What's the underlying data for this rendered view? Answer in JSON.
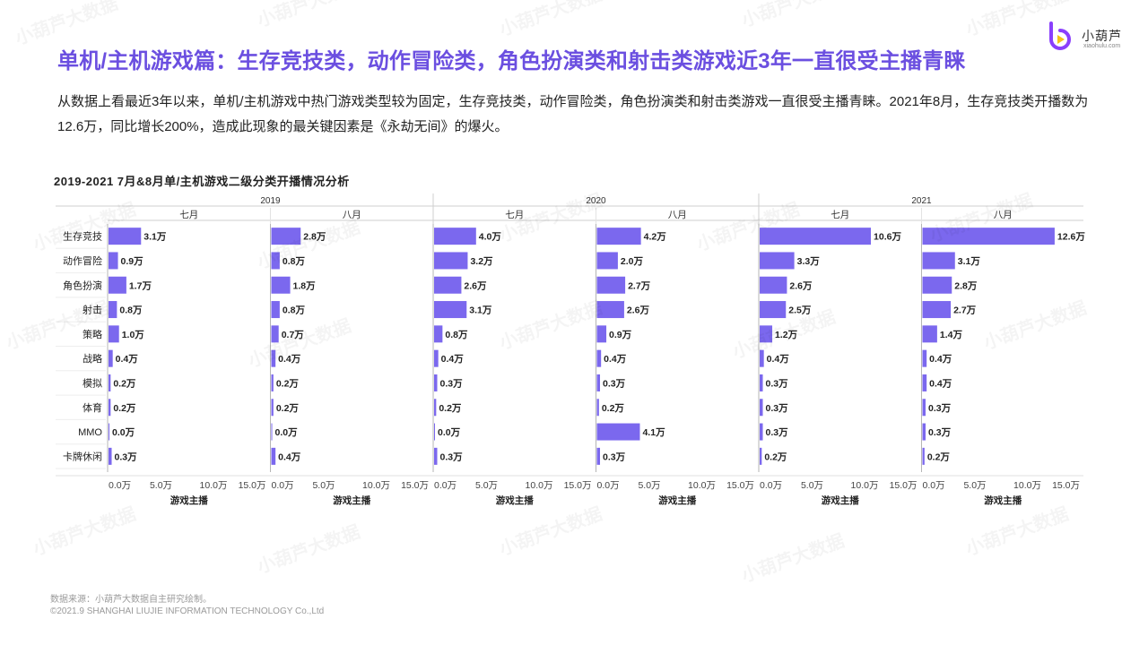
{
  "page": {
    "title": "单机/主机游戏篇：生存竞技类，动作冒险类，角色扮演类和射击类游戏近3年一直很受主播青睐",
    "description": "从数据上看最近3年以来，单机/主机游戏中热门游戏类型较为固定，生存竞技类，动作冒险类，角色扮演类和射击类游戏一直很受主播青睐。2021年8月，生存竞技类开播数为12.6万，同比增长200%，造成此现象的最关键因素是《永劫无间》的爆火。",
    "footer_source": "数据来源：小葫芦大数据自主研究绘制。",
    "footer_copyright": "©2021.9 SHANGHAI LIUJIE INFORMATION  TECHNOLOGY Co.,Ltd",
    "watermark": "小葫芦大数据"
  },
  "logo": {
    "name": "小葫芦",
    "url": "xiaohulu.com",
    "icon": "xiaohulu-logo-icon",
    "colors": {
      "purple": "#8a3ffc",
      "yellow": "#f5c518"
    }
  },
  "colors": {
    "bar": "#7b68ee",
    "title": "#6b4fe0"
  },
  "chart_data": {
    "type": "bar",
    "orientation": "horizontal",
    "title": "2019-2021  7月&8月单/主机游戏二级分类开播情况分析",
    "categories": [
      "生存竞技",
      "动作冒险",
      "角色扮演",
      "射击",
      "策略",
      "战略",
      "模拟",
      "体育",
      "MMO",
      "卡牌休闲"
    ],
    "years": [
      "2019",
      "2020",
      "2021"
    ],
    "xlabel": "游戏主播",
    "xlim": [
      0,
      15
    ],
    "xticks": [
      "0.0万",
      "5.0万",
      "10.0万",
      "15.0万"
    ],
    "value_unit": "万",
    "panels": [
      {
        "year": "2019",
        "month": "七月",
        "values": [
          3.1,
          0.9,
          1.7,
          0.8,
          1.0,
          0.4,
          0.2,
          0.2,
          0.0,
          0.3
        ]
      },
      {
        "year": "2019",
        "month": "八月",
        "values": [
          2.8,
          0.8,
          1.8,
          0.8,
          0.7,
          0.4,
          0.2,
          0.2,
          0.0,
          0.4
        ]
      },
      {
        "year": "2020",
        "month": "七月",
        "values": [
          4.0,
          3.2,
          2.6,
          3.1,
          0.8,
          0.4,
          0.3,
          0.2,
          0.0,
          0.3
        ]
      },
      {
        "year": "2020",
        "month": "八月",
        "values": [
          4.2,
          2.0,
          2.7,
          2.6,
          0.9,
          0.4,
          0.3,
          0.2,
          4.1,
          0.3
        ]
      },
      {
        "year": "2021",
        "month": "七月",
        "values": [
          10.6,
          3.3,
          2.6,
          2.5,
          1.2,
          0.4,
          0.3,
          0.3,
          0.3,
          0.2
        ]
      },
      {
        "year": "2021",
        "month": "八月",
        "values": [
          12.6,
          3.1,
          2.8,
          2.7,
          1.4,
          0.4,
          0.4,
          0.3,
          0.3,
          0.2
        ]
      }
    ]
  }
}
